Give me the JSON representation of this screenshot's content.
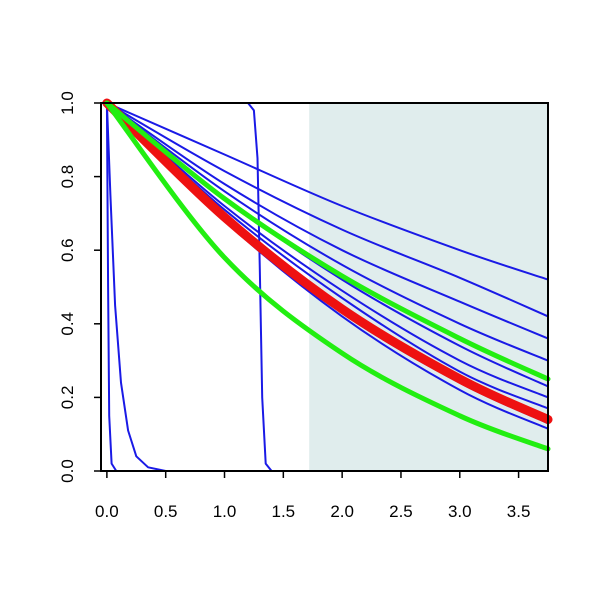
{
  "chart_data": {
    "type": "line",
    "title": "",
    "xlabel": "",
    "ylabel": "",
    "xlim": [
      -0.05,
      3.75
    ],
    "ylim": [
      0.0,
      1.0
    ],
    "x_ticks": [
      "0.0",
      "0.5",
      "1.0",
      "1.5",
      "2.0",
      "2.5",
      "3.0",
      "3.5"
    ],
    "y_ticks": [
      "0.0",
      "0.2",
      "0.4",
      "0.6",
      "0.8",
      "1.0"
    ],
    "grid": false,
    "shaded_region": {
      "x_from": 1.72,
      "x_to": 3.75,
      "color": "#e0eded"
    },
    "colors": {
      "blue": "#1a1ae6",
      "red": "#ee1111",
      "green": "#22ee11"
    },
    "series": [
      {
        "color": "blue",
        "width": 2,
        "kind": "decay",
        "points": [
          [
            0,
            1
          ],
          [
            1,
            0.815
          ],
          [
            2,
            0.656
          ],
          [
            3,
            0.525
          ],
          [
            3.75,
            0.42
          ]
        ]
      },
      {
        "color": "blue",
        "width": 2,
        "kind": "decay",
        "points": [
          [
            0,
            1
          ],
          [
            1,
            0.86
          ],
          [
            2,
            0.72
          ],
          [
            3,
            0.6
          ],
          [
            3.75,
            0.52
          ]
        ]
      },
      {
        "color": "blue",
        "width": 2,
        "kind": "decay",
        "points": [
          [
            0,
            1
          ],
          [
            1,
            0.78
          ],
          [
            2,
            0.6
          ],
          [
            3,
            0.46
          ],
          [
            3.75,
            0.36
          ]
        ]
      },
      {
        "color": "blue",
        "width": 2,
        "kind": "decay",
        "points": [
          [
            0,
            1
          ],
          [
            1,
            0.76
          ],
          [
            2,
            0.56
          ],
          [
            3,
            0.4
          ],
          [
            3.75,
            0.3
          ]
        ]
      },
      {
        "color": "blue",
        "width": 2,
        "kind": "decay",
        "points": [
          [
            0,
            1
          ],
          [
            1,
            0.74
          ],
          [
            2,
            0.52
          ],
          [
            3,
            0.34
          ],
          [
            3.75,
            0.23
          ]
        ]
      },
      {
        "color": "blue",
        "width": 2,
        "kind": "decay",
        "points": [
          [
            0,
            1
          ],
          [
            1,
            0.72
          ],
          [
            2,
            0.49
          ],
          [
            3,
            0.3
          ],
          [
            3.75,
            0.2
          ]
        ]
      },
      {
        "color": "blue",
        "width": 2,
        "kind": "decay",
        "points": [
          [
            0,
            1
          ],
          [
            1,
            0.71
          ],
          [
            2,
            0.47
          ],
          [
            3,
            0.27
          ],
          [
            3.75,
            0.17
          ]
        ]
      },
      {
        "color": "blue",
        "width": 2,
        "kind": "decay",
        "points": [
          [
            0,
            1
          ],
          [
            1,
            0.69
          ],
          [
            2,
            0.43
          ],
          [
            3,
            0.24
          ],
          [
            3.75,
            0.13
          ]
        ]
      },
      {
        "color": "blue",
        "width": 2,
        "kind": "decay",
        "points": [
          [
            0,
            1
          ],
          [
            1,
            0.68
          ],
          [
            2,
            0.42
          ],
          [
            3,
            0.22
          ],
          [
            3.75,
            0.115
          ]
        ]
      },
      {
        "color": "blue",
        "width": 2,
        "kind": "decay",
        "points": [
          [
            0,
            1
          ],
          [
            1,
            0.69
          ],
          [
            2,
            0.44
          ],
          [
            3,
            0.25
          ],
          [
            3.75,
            0.15
          ]
        ]
      },
      {
        "color": "blue",
        "width": 2,
        "kind": "step",
        "points": [
          [
            0,
            1
          ],
          [
            1.2,
            1
          ],
          [
            1.25,
            0.98
          ],
          [
            1.28,
            0.85
          ],
          [
            1.3,
            0.55
          ],
          [
            1.32,
            0.2
          ],
          [
            1.35,
            0.02
          ],
          [
            1.4,
            0
          ],
          [
            3.75,
            0
          ]
        ]
      },
      {
        "color": "blue",
        "width": 2,
        "kind": "fast",
        "points": [
          [
            0,
            1
          ],
          [
            0.03,
            0.75
          ],
          [
            0.07,
            0.45
          ],
          [
            0.12,
            0.24
          ],
          [
            0.18,
            0.11
          ],
          [
            0.25,
            0.04
          ],
          [
            0.35,
            0.01
          ],
          [
            0.5,
            0
          ],
          [
            3.75,
            0
          ]
        ]
      },
      {
        "color": "blue",
        "width": 2,
        "kind": "fast",
        "points": [
          [
            0,
            1
          ],
          [
            0.01,
            0.5
          ],
          [
            0.02,
            0.15
          ],
          [
            0.04,
            0.02
          ],
          [
            0.08,
            0
          ],
          [
            3.75,
            0
          ]
        ]
      },
      {
        "color": "red",
        "width": 9,
        "kind": "mean",
        "points": [
          [
            0,
            1
          ],
          [
            1,
            0.69
          ],
          [
            2,
            0.44
          ],
          [
            3,
            0.25
          ],
          [
            3.75,
            0.14
          ]
        ]
      },
      {
        "color": "green",
        "width": 5,
        "kind": "band",
        "points": [
          [
            0,
            1
          ],
          [
            1,
            0.74
          ],
          [
            2,
            0.53
          ],
          [
            3,
            0.36
          ],
          [
            3.75,
            0.25
          ]
        ]
      },
      {
        "color": "green",
        "width": 5,
        "kind": "band",
        "points": [
          [
            0,
            1
          ],
          [
            1,
            0.58
          ],
          [
            2,
            0.32
          ],
          [
            3,
            0.15
          ],
          [
            3.75,
            0.06
          ]
        ]
      }
    ]
  }
}
